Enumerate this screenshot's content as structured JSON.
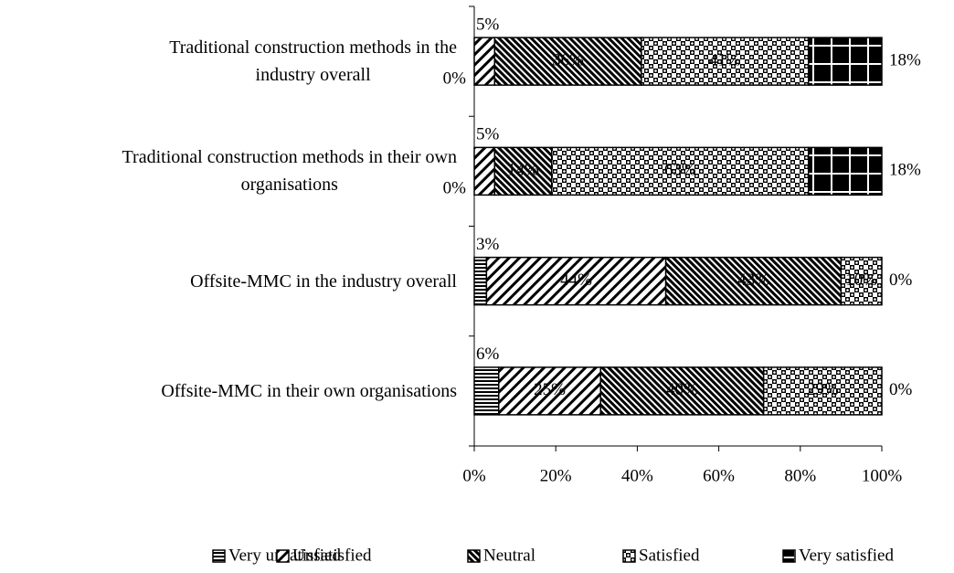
{
  "chart_data": {
    "type": "stacked_barh",
    "categories": [
      "Traditional construction methods in the\nindustry overall",
      "Traditional construction methods in their own\norganisations",
      "Offsite-MMC in the industry overall",
      "Offsite-MMC in their own organisations"
    ],
    "series": [
      {
        "name": "Very unsatisfied",
        "values": [
          0,
          0,
          3,
          6
        ],
        "value_labels": [
          "0%",
          "0%",
          "3%",
          "6%"
        ]
      },
      {
        "name": "Unsatisfied",
        "values": [
          5,
          5,
          44,
          25
        ],
        "value_labels": [
          "5%",
          "5%",
          "44%",
          "25%"
        ]
      },
      {
        "name": "Neutral",
        "values": [
          36,
          14,
          43,
          40
        ],
        "value_labels": [
          "36%",
          "14%",
          "43%",
          "40%"
        ]
      },
      {
        "name": "Satisfied",
        "values": [
          41,
          63,
          10,
          29
        ],
        "value_labels": [
          "41%",
          "63%",
          "10%",
          "29%"
        ]
      },
      {
        "name": "Very satisfied",
        "values": [
          18,
          18,
          0,
          0
        ],
        "value_labels": [
          "18%",
          "18%",
          "0%",
          "0%"
        ]
      }
    ],
    "xlim": [
      0,
      100
    ],
    "xticks": [
      {
        "value": 0,
        "label": "0%"
      },
      {
        "value": 20,
        "label": "20%"
      },
      {
        "value": 40,
        "label": "40%"
      },
      {
        "value": 60,
        "label": "60%"
      },
      {
        "value": 80,
        "label": "80%"
      },
      {
        "value": 100,
        "label": "100%"
      }
    ],
    "legend": "bottom"
  }
}
